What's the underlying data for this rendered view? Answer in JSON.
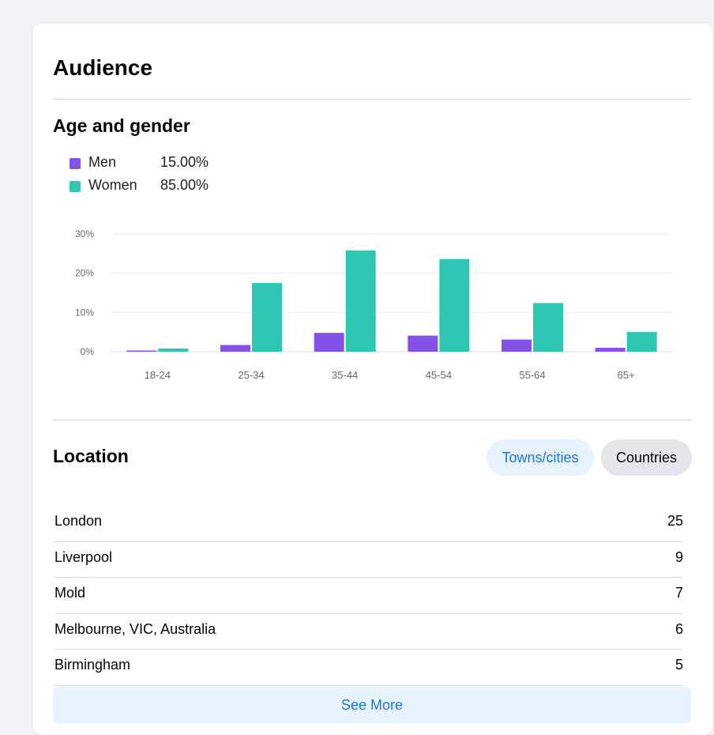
{
  "audience": {
    "title": "Audience"
  },
  "age_gender": {
    "title": "Age and gender",
    "legend": [
      {
        "name": "Men",
        "value": "15.00%",
        "color": "#8452e7"
      },
      {
        "name": "Women",
        "value": "85.00%",
        "color": "#2fc7b3"
      }
    ]
  },
  "chart_data": {
    "type": "bar",
    "categories": [
      "18-24",
      "25-34",
      "35-44",
      "45-54",
      "55-64",
      "65+"
    ],
    "series": [
      {
        "name": "Men",
        "values": [
          0.3,
          1.7,
          4.8,
          4.1,
          3.1,
          1.0
        ]
      },
      {
        "name": "Women",
        "values": [
          0.8,
          17.5,
          25.8,
          23.6,
          12.4,
          5.0
        ]
      }
    ],
    "yticks": [
      "0%",
      "10%",
      "20%",
      "30%"
    ],
    "ylim": [
      0,
      30
    ],
    "grid": true,
    "xlabel": "",
    "ylabel": "",
    "colors": [
      "#8452e7",
      "#2fc7b3"
    ]
  },
  "location": {
    "title": "Location",
    "toggle": {
      "active": "Towns/cities",
      "inactive": "Countries"
    },
    "rows": [
      {
        "name": "London",
        "count": "25"
      },
      {
        "name": "Liverpool",
        "count": "9"
      },
      {
        "name": "Mold",
        "count": "7"
      },
      {
        "name": "Melbourne, VIC, Australia",
        "count": "6"
      },
      {
        "name": "Birmingham",
        "count": "5"
      }
    ],
    "see_more": "See More"
  }
}
